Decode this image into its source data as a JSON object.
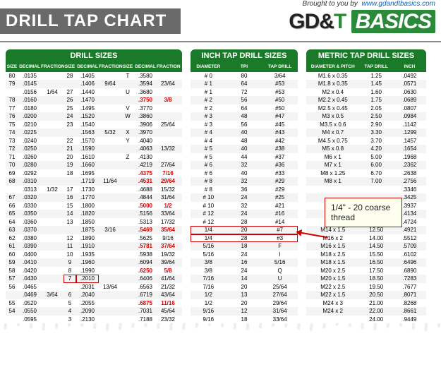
{
  "header": {
    "title": "DRILL TAP CHART",
    "brought_label": "Brought to you by",
    "brought_url": "www.gdandtbasics.com",
    "logo_gd": "GD&",
    "logo_t": "T",
    "logo_basics": "BASICS"
  },
  "drill": {
    "title": "DRILL SIZES",
    "headers": [
      "SIZE",
      "DECIMAL",
      "FRACTION",
      "SIZE",
      "DECIMAL",
      "FRACTION",
      "SIZE",
      "DECIMAL",
      "FRACTION"
    ],
    "rows": [
      [
        "80",
        ".0135",
        "",
        "28",
        ".1405",
        "",
        "T",
        ".3580",
        ""
      ],
      [
        "79",
        ".0145",
        "",
        "",
        ".1406",
        "9/64",
        "",
        ".3594",
        "23/64"
      ],
      [
        "",
        ".0156",
        "1/64",
        "27",
        ".1440",
        "",
        "U",
        ".3680",
        ""
      ],
      [
        "78",
        ".0160",
        "",
        "26",
        ".1470",
        "",
        "",
        ".3750",
        "3/8"
      ],
      [
        "77",
        ".0180",
        "",
        "25",
        ".1495",
        "",
        "V",
        ".3770",
        ""
      ],
      [
        "76",
        ".0200",
        "",
        "24",
        ".1520",
        "",
        "W",
        ".3860",
        ""
      ],
      [
        "75",
        ".0210",
        "",
        "23",
        ".1540",
        "",
        "",
        ".3906",
        "25/64"
      ],
      [
        "74",
        ".0225",
        "",
        "",
        ".1563",
        "5/32",
        "X",
        ".3970",
        ""
      ],
      [
        "73",
        ".0240",
        "",
        "22",
        ".1570",
        "",
        "Y",
        ".4040",
        ""
      ],
      [
        "72",
        ".0250",
        "",
        "21",
        ".1590",
        "",
        "",
        ".4063",
        "13/32"
      ],
      [
        "71",
        ".0260",
        "",
        "20",
        ".1610",
        "",
        "Z",
        ".4130",
        ""
      ],
      [
        "70",
        ".0280",
        "",
        "19",
        ".1660",
        "",
        "",
        ".4219",
        "27/64"
      ],
      [
        "69",
        ".0292",
        "",
        "18",
        ".1695",
        "",
        "",
        ".4375",
        "7/16"
      ],
      [
        "68",
        ".0310",
        "",
        "",
        ".1719",
        "11/64",
        "",
        ".4531",
        "29/64"
      ],
      [
        "",
        ".0313",
        "1/32",
        "17",
        ".1730",
        "",
        "",
        ".4688",
        "15/32"
      ],
      [
        "67",
        ".0320",
        "",
        "16",
        ".1770",
        "",
        "",
        ".4844",
        "31/64"
      ],
      [
        "66",
        ".0330",
        "",
        "15",
        ".1800",
        "",
        "",
        ".5000",
        "1/2"
      ],
      [
        "65",
        ".0350",
        "",
        "14",
        ".1820",
        "",
        "",
        ".5156",
        "33/64"
      ],
      [
        "64",
        ".0360",
        "",
        "13",
        ".1850",
        "",
        "",
        ".5313",
        "17/32"
      ],
      [
        "63",
        ".0370",
        "",
        "",
        ".1875",
        "3/16",
        "",
        ".5469",
        "35/64"
      ],
      [
        "62",
        ".0380",
        "",
        "12",
        ".1890",
        "",
        "",
        ".5625",
        "9/16"
      ],
      [
        "61",
        ".0390",
        "",
        "11",
        ".1910",
        "",
        "",
        ".5781",
        "37/64"
      ],
      [
        "60",
        ".0400",
        "",
        "10",
        ".1935",
        "",
        "",
        ".5938",
        "19/32"
      ],
      [
        "59",
        ".0410",
        "",
        "9",
        ".1960",
        "",
        "",
        ".6094",
        "39/64"
      ],
      [
        "58",
        ".0420",
        "",
        "8",
        ".1990",
        "",
        "",
        ".6250",
        "5/8"
      ],
      [
        "57",
        ".0430",
        "",
        "7",
        ".2010",
        "",
        "",
        ".6406",
        "41/64"
      ],
      [
        "56",
        ".0465",
        "",
        "",
        ".2031",
        "13/64",
        "",
        ".6563",
        "21/32"
      ],
      [
        "",
        ".0469",
        "3/64",
        "6",
        ".2040",
        "",
        "",
        ".6719",
        "43/64"
      ],
      [
        "55",
        ".0520",
        "",
        "5",
        ".2055",
        "",
        "",
        ".6875",
        "11/16"
      ],
      [
        "54",
        ".0550",
        "",
        "4",
        ".2090",
        "",
        "",
        ".7031",
        "45/64"
      ],
      [
        "",
        ".0595",
        "",
        "3",
        ".2130",
        "",
        "",
        ".7188",
        "23/32"
      ]
    ],
    "highlight_row": 25,
    "highlight_cols": [
      3,
      4
    ],
    "red_cells_col8": [
      3,
      12,
      13,
      16,
      19,
      21,
      24,
      28
    ]
  },
  "inch": {
    "title": "INCH TAP DRILL SIZES",
    "headers": [
      "DIAMETER",
      "TPI",
      "TAP DRILL"
    ],
    "rows": [
      [
        "# 0",
        "80",
        "3/64"
      ],
      [
        "# 1",
        "64",
        "#53"
      ],
      [
        "# 1",
        "72",
        "#53"
      ],
      [
        "# 2",
        "56",
        "#50"
      ],
      [
        "# 2",
        "64",
        "#50"
      ],
      [
        "# 3",
        "48",
        "#47"
      ],
      [
        "# 3",
        "56",
        "#45"
      ],
      [
        "# 4",
        "40",
        "#43"
      ],
      [
        "# 4",
        "48",
        "#42"
      ],
      [
        "# 5",
        "40",
        "#38"
      ],
      [
        "# 5",
        "44",
        "#37"
      ],
      [
        "# 6",
        "32",
        "#36"
      ],
      [
        "# 6",
        "40",
        "#33"
      ],
      [
        "# 8",
        "32",
        "#29"
      ],
      [
        "# 8",
        "36",
        "#29"
      ],
      [
        "# 10",
        "24",
        "#25"
      ],
      [
        "# 10",
        "32",
        "#21"
      ],
      [
        "# 12",
        "24",
        "#16"
      ],
      [
        "# 12",
        "28",
        "#14"
      ],
      [
        "1/4",
        "20",
        "#7"
      ],
      [
        "1/4",
        "28",
        "#3"
      ],
      [
        "5/16",
        "18",
        "F"
      ],
      [
        "5/16",
        "24",
        "I"
      ],
      [
        "3/8",
        "16",
        "5/16"
      ],
      [
        "3/8",
        "24",
        "Q"
      ],
      [
        "7/16",
        "14",
        "U"
      ],
      [
        "7/16",
        "20",
        "25/64"
      ],
      [
        "1/2",
        "13",
        "27/64"
      ],
      [
        "1/2",
        "20",
        "29/64"
      ],
      [
        "9/16",
        "12",
        "31/64"
      ],
      [
        "9/16",
        "18",
        "33/64"
      ]
    ],
    "highlight_rows": [
      19,
      20
    ]
  },
  "metric": {
    "title": "METRIC TAP DRILL SIZES",
    "headers": [
      "DIAMETER & PITCH",
      "TAP DRILL",
      "INCH"
    ],
    "rows": [
      [
        "M1.6 x 0.35",
        "1.25",
        ".0492"
      ],
      [
        "M1.8 x 0.35",
        "1.45",
        ".0571"
      ],
      [
        "M2 x 0.4",
        "1.60",
        ".0630"
      ],
      [
        "M2.2 x 0.45",
        "1.75",
        ".0689"
      ],
      [
        "M2.5 x 0.45",
        "2.05",
        ".0807"
      ],
      [
        "M3 x 0.5",
        "2.50",
        ".0984"
      ],
      [
        "M3.5 x 0.6",
        "2.90",
        ".1142"
      ],
      [
        "M4 x 0.7",
        "3.30",
        ".1299"
      ],
      [
        "M4.5 x 0.75",
        "3.70",
        ".1457"
      ],
      [
        "M5 x 0.8",
        "4.20",
        ".1654"
      ],
      [
        "M6 x 1",
        "5.00",
        ".1968"
      ],
      [
        "M7 x 1",
        "6.00",
        ".2362"
      ],
      [
        "M8 x 1.25",
        "6.70",
        ".2638"
      ],
      [
        "M8 x 1",
        "7.00",
        ".2756"
      ],
      [
        "",
        "",
        ".3346"
      ],
      [
        "",
        "",
        ".3425"
      ],
      [
        "",
        "",
        ".3937"
      ],
      [
        "",
        "",
        ".4134"
      ],
      [
        "",
        "",
        ".4724"
      ],
      [
        "M14 x 1.5",
        "12.50",
        ".4921"
      ],
      [
        "M16 x 2",
        "14.00",
        ".5512"
      ],
      [
        "M16 x 1.5",
        "14.50",
        ".5709"
      ],
      [
        "M18 x 2.5",
        "15.50",
        ".6102"
      ],
      [
        "M18 x 1.5",
        "16.50",
        ".6496"
      ],
      [
        "M20 x 2.5",
        "17.50",
        ".6890"
      ],
      [
        "M20 x 1.5",
        "18.50",
        ".7283"
      ],
      [
        "M22 x 2.5",
        "19.50",
        ".7677"
      ],
      [
        "M22 x 1.5",
        "20.50",
        ".8071"
      ],
      [
        "M24 x 3",
        "21.00",
        ".8268"
      ],
      [
        "M24 x 2",
        "22.00",
        ".8661"
      ],
      [
        "",
        "24.00",
        ".9449"
      ]
    ]
  },
  "callout": {
    "text": "1/4\" - 20 coarse thread"
  },
  "colors": {
    "green": "#1a7a2a",
    "red": "#d00000",
    "grey_band": "#6a6a6a"
  }
}
